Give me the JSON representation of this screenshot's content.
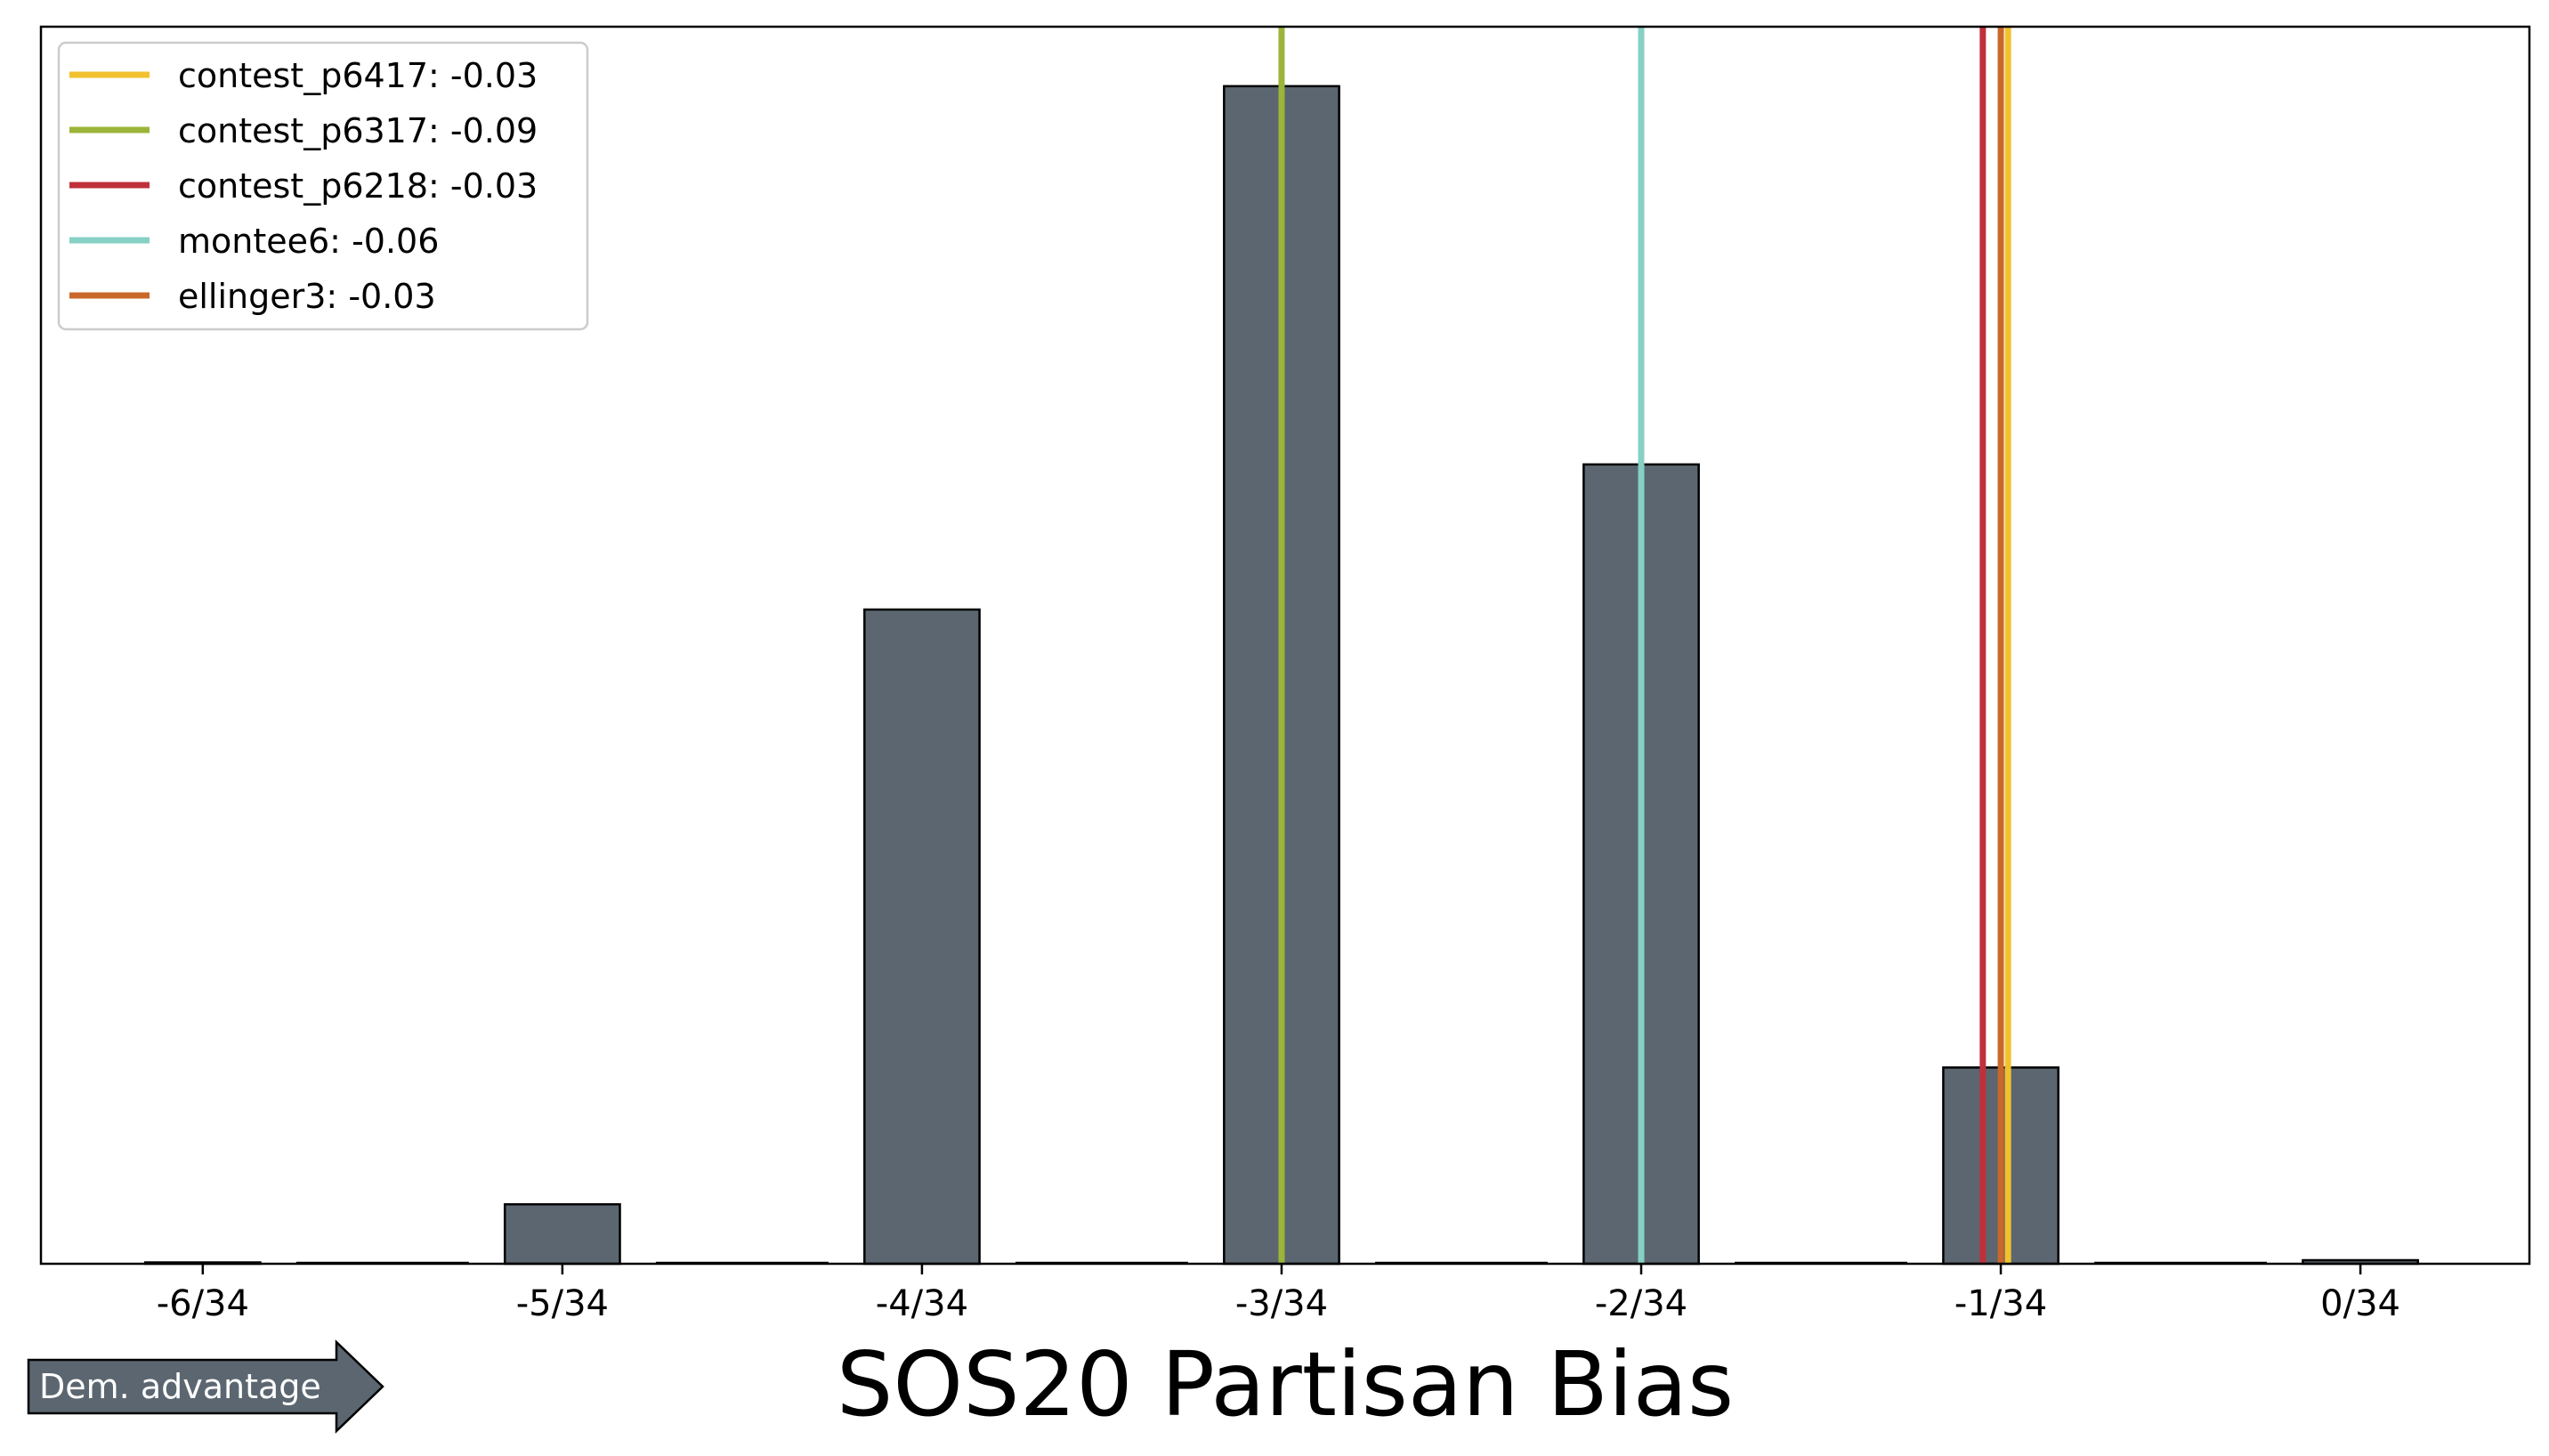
{
  "chart_data": {
    "type": "bar",
    "title": "",
    "xlabel": "SOS20 Partisan Bias",
    "ylabel": "",
    "x_ticks": [
      "-6/34",
      "-5/34",
      "-4/34",
      "-3/34",
      "-2/34",
      "-1/34",
      "0/34"
    ],
    "x_tick_values": [
      -6,
      -5,
      -4,
      -3,
      -2,
      -1,
      0
    ],
    "x_unit_denominator": 34,
    "bars": [
      {
        "x": -6,
        "value": 0
      },
      {
        "x": -5,
        "value": 50
      },
      {
        "x": -4,
        "value": 550
      },
      {
        "x": -3,
        "value": 990
      },
      {
        "x": -2,
        "value": 672
      },
      {
        "x": -1,
        "value": 165
      },
      {
        "x": 0,
        "value": 3
      }
    ],
    "ylim": [
      0,
      1040
    ],
    "xlim": [
      -6.45,
      0.47
    ],
    "bar_color": "#5b6670",
    "bar_edge_color": "#000000",
    "grid": false,
    "legend_position": "top-left",
    "reference_lines": [
      {
        "name": "contest_p6417",
        "label": "contest_p6417: -0.03",
        "x": -0.98,
        "color": "#f2c12e"
      },
      {
        "name": "contest_p6317",
        "label": "contest_p6317: -0.09",
        "x": -3.0,
        "color": "#9bb53a"
      },
      {
        "name": "contest_p6218",
        "label": "contest_p6218: -0.03",
        "x": -1.05,
        "color": "#c0303a"
      },
      {
        "name": "montee6",
        "label": "montee6: -0.06",
        "x": -2.0,
        "color": "#86d0c4"
      },
      {
        "name": "ellinger3",
        "label": "ellinger3: -0.03",
        "x": -1.0,
        "color": "#c9682a"
      }
    ]
  },
  "annotation": {
    "arrow_label": "Dem. advantage",
    "arrow_color": "#5b6670"
  }
}
